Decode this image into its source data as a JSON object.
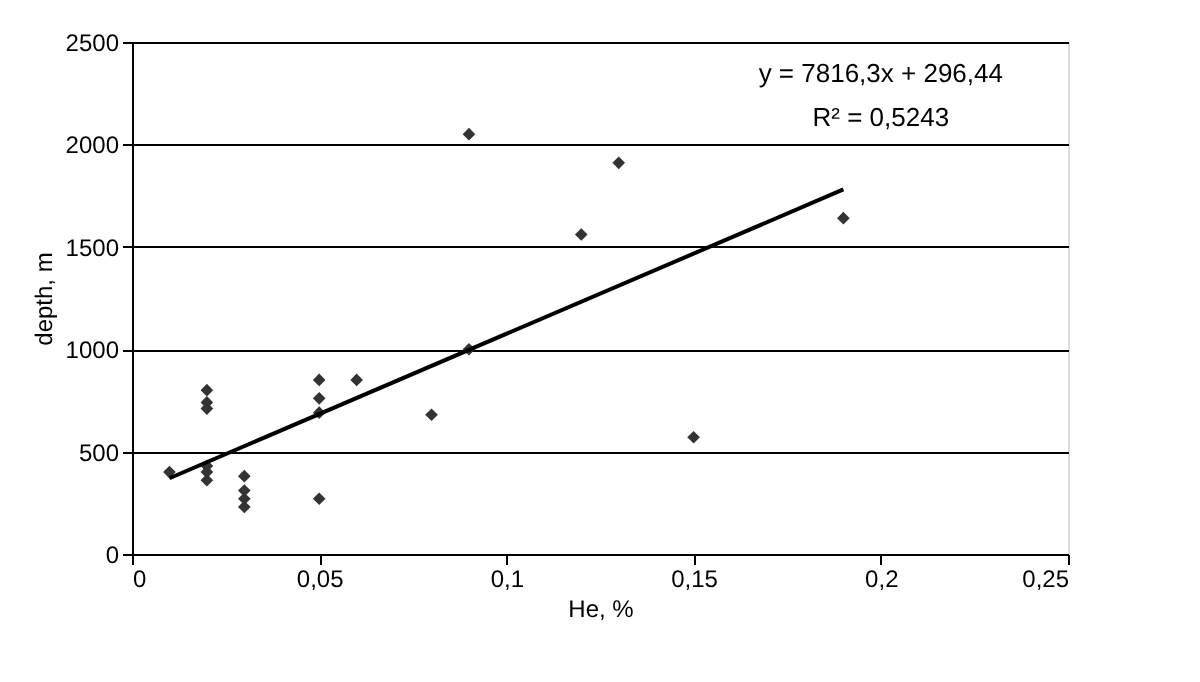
{
  "chart_data": {
    "type": "scatter",
    "xlabel": "He,  %",
    "ylabel": "depth, m",
    "marker": "diamond",
    "grid": "y",
    "xlim": [
      0,
      0.25
    ],
    "xticks": [
      0,
      {
        "value": 0.05,
        "label": "0,05"
      },
      {
        "value": 0.1,
        "label": "0,1"
      },
      {
        "value": 0.15,
        "label": "0,15"
      },
      {
        "value": 0.2,
        "label": "0,2"
      },
      {
        "value": 0.25,
        "label": "0,25"
      }
    ],
    "ylim": [
      0,
      2500
    ],
    "yticks": [
      0,
      500,
      1000,
      1500,
      2000,
      2500
    ],
    "annotations": [
      "y = 7816,3x + 296,44",
      "R² = 0,5243"
    ],
    "series": [
      {
        "color": "#333333",
        "x": [
          0.01,
          0.02,
          0.02,
          0.02,
          0.02,
          0.02,
          0.02,
          0.03,
          0.03,
          0.03,
          0.03,
          0.05,
          0.05,
          0.05,
          0.05,
          0.06,
          0.08,
          0.09,
          0.09,
          0.12,
          0.13,
          0.15,
          0.19
        ],
        "values": [
          400,
          800,
          740,
          710,
          430,
          400,
          360,
          380,
          310,
          270,
          230,
          850,
          760,
          690,
          270,
          850,
          680,
          2050,
          1000,
          1560,
          1910,
          570,
          1640
        ]
      },
      {
        "type": "line",
        "color": "#000000",
        "marker": "none",
        "x": [
          0.01,
          0.19
        ],
        "values": [
          370,
          1780
        ]
      }
    ]
  }
}
